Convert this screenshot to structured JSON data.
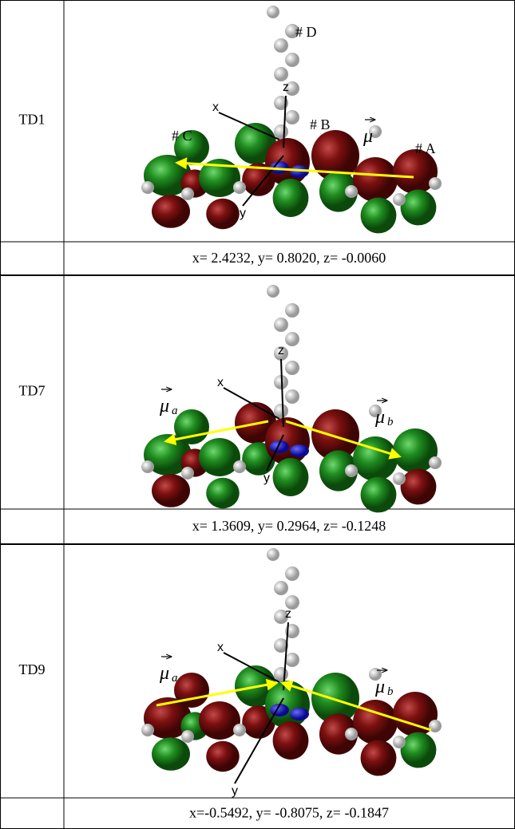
{
  "rows": [
    {
      "state": "TD1",
      "labels": [
        "# D",
        "# C",
        "# B",
        "# A"
      ],
      "mu": [
        {
          "symbol": "μ"
        }
      ],
      "axes": [
        "x",
        "z",
        "y"
      ],
      "dipole": "x= 2.4232, y= 0.8020, z= -0.0060"
    },
    {
      "state": "TD7",
      "labels": [],
      "mu": [
        {
          "symbol": "μ",
          "sub": "a"
        },
        {
          "symbol": "μ",
          "sub": "b"
        }
      ],
      "axes": [
        "x",
        "z",
        "y"
      ],
      "dipole": "x= 1.3609, y= 0.2964, z= -0.1248"
    },
    {
      "state": "TD9",
      "labels": [],
      "mu": [
        {
          "symbol": "μ",
          "sub": "a"
        },
        {
          "symbol": "μ",
          "sub": "b"
        }
      ],
      "axes": [
        "x",
        "z",
        "y"
      ],
      "dipole": "x=-0.5492, y= -0.8075, z= -0.1847"
    }
  ]
}
